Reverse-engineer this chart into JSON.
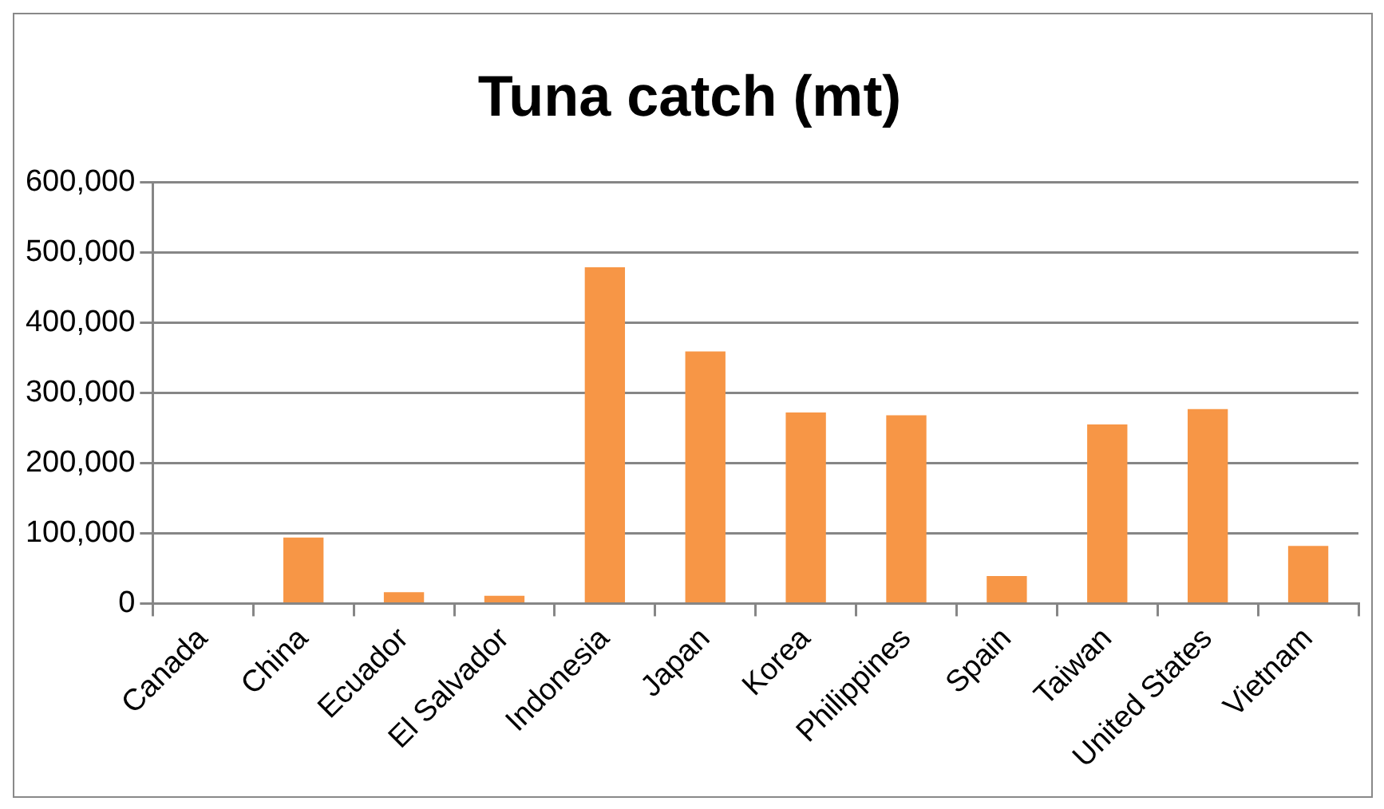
{
  "chart_data": {
    "type": "bar",
    "title": "Tuna catch (mt)",
    "categories": [
      "Canada",
      "China",
      "Ecuador",
      "El Salvador",
      "Indonesia",
      "Japan",
      "Korea",
      "Philippines",
      "Spain",
      "Taiwan",
      "United States",
      "Vietnam"
    ],
    "values": [
      0,
      94000,
      16000,
      11000,
      479000,
      359000,
      272000,
      268000,
      39000,
      255000,
      277000,
      82000
    ],
    "color": "#f79646",
    "ylim": [
      0,
      600000
    ],
    "yticks": [
      {
        "value": 0,
        "label": "0"
      },
      {
        "value": 100000,
        "label": "100,000"
      },
      {
        "value": 200000,
        "label": "200,000"
      },
      {
        "value": 300000,
        "label": "300,000"
      },
      {
        "value": 400000,
        "label": "400,000"
      },
      {
        "value": 500000,
        "label": "500,000"
      },
      {
        "value": 600000,
        "label": "600,000"
      }
    ],
    "grid": "y",
    "legend": false
  }
}
